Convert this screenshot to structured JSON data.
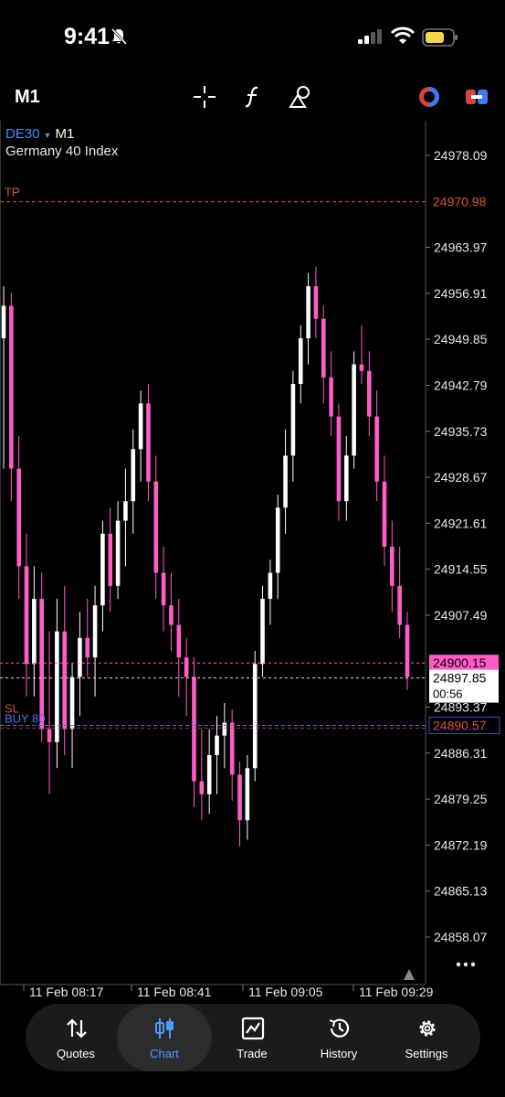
{
  "status": {
    "time": "9:41"
  },
  "toolbar": {
    "timeframe": "M1"
  },
  "chart_info": {
    "symbol": "DE30",
    "timeframe": "M1",
    "description": "Germany 40 Index"
  },
  "price_axis": [
    "24978.09",
    "24963.97",
    "24956.91",
    "24949.85",
    "24942.79",
    "24935.73",
    "24928.67",
    "24921.61",
    "24914.55",
    "24907.49",
    "24893.37",
    "24886.31",
    "24879.25",
    "24872.19",
    "24865.13",
    "24858.07"
  ],
  "lines": {
    "tp_label": "TP",
    "tp_price": "24970.98",
    "sl_label": "SL",
    "buy_label": "BUY 80",
    "entry_price": "24890.57",
    "ask_price": "24900.15",
    "bid_price": "24897.85",
    "countdown": "00:56"
  },
  "time_axis": [
    "11 Feb 08:17",
    "11 Feb 08:41",
    "11 Feb 09:05",
    "11 Feb 09:29"
  ],
  "tabs": [
    {
      "label": "Quotes",
      "icon": "quotes-arrows-icon"
    },
    {
      "label": "Chart",
      "icon": "candlestick-icon"
    },
    {
      "label": "Trade",
      "icon": "trade-chart-icon"
    },
    {
      "label": "History",
      "icon": "history-clock-icon"
    },
    {
      "label": "Settings",
      "icon": "gear-icon"
    }
  ],
  "colors": {
    "bull": "#ffffff",
    "bear": "#ff5cc8",
    "tp": "#d9533c",
    "sl": "#d9533c",
    "entry": "#5b6ee0",
    "ask": "#ff5cc8",
    "accent": "#4d9bff"
  },
  "chart_data": {
    "type": "candlestick",
    "x_labels": [
      "11 Feb 08:17",
      "11 Feb 08:41",
      "11 Feb 09:05",
      "11 Feb 09:29"
    ],
    "ylim": [
      24853,
      24985
    ],
    "ohlc": [
      [
        24950,
        24958,
        24930,
        24955
      ],
      [
        24955,
        24957,
        24925,
        24930
      ],
      [
        24930,
        24935,
        24910,
        24915
      ],
      [
        24915,
        24920,
        24895,
        24900
      ],
      [
        24900,
        24915,
        24895,
        24910
      ],
      [
        24910,
        24914,
        24888,
        24890
      ],
      [
        24890,
        24905,
        24880,
        24888
      ],
      [
        24888,
        24910,
        24884,
        24905
      ],
      [
        24905,
        24912,
        24886,
        24890
      ],
      [
        24890,
        24900,
        24884,
        24898
      ],
      [
        24898,
        24908,
        24892,
        24904
      ],
      [
        24904,
        24910,
        24898,
        24901
      ],
      [
        24901,
        24912,
        24895,
        24909
      ],
      [
        24909,
        24922,
        24905,
        24920
      ],
      [
        24920,
        24924,
        24908,
        24912
      ],
      [
        24912,
        24925,
        24910,
        24922
      ],
      [
        24922,
        24930,
        24915,
        24925
      ],
      [
        24925,
        24936,
        24920,
        24933
      ],
      [
        24933,
        24942,
        24928,
        24940
      ],
      [
        24940,
        24943,
        24925,
        24928
      ],
      [
        24928,
        24932,
        24910,
        24914
      ],
      [
        24914,
        24918,
        24905,
        24909
      ],
      [
        24909,
        24914,
        24902,
        24906
      ],
      [
        24906,
        24910,
        24895,
        24901
      ],
      [
        24901,
        24904,
        24892,
        24898
      ],
      [
        24898,
        24901,
        24878,
        24882
      ],
      [
        24882,
        24890,
        24876,
        24880
      ],
      [
        24880,
        24890,
        24877,
        24886
      ],
      [
        24886,
        24892,
        24880,
        24889
      ],
      [
        24889,
        24894,
        24884,
        24891
      ],
      [
        24891,
        24893,
        24879,
        24883
      ],
      [
        24883,
        24885,
        24872,
        24876
      ],
      [
        24876,
        24886,
        24873,
        24884
      ],
      [
        24884,
        24902,
        24882,
        24900
      ],
      [
        24900,
        24912,
        24898,
        24910
      ],
      [
        24910,
        24916,
        24906,
        24914
      ],
      [
        24914,
        24926,
        24910,
        24924
      ],
      [
        24924,
        24936,
        24920,
        24932
      ],
      [
        24932,
        24945,
        24928,
        24943
      ],
      [
        24943,
        24952,
        24940,
        24950
      ],
      [
        24950,
        24960,
        24946,
        24958
      ],
      [
        24958,
        24961,
        24950,
        24953
      ],
      [
        24953,
        24955,
        24940,
        24944
      ],
      [
        24944,
        24948,
        24935,
        24938
      ],
      [
        24938,
        24940,
        24922,
        24925
      ],
      [
        24925,
        24935,
        24922,
        24932
      ],
      [
        24932,
        24948,
        24930,
        24946
      ],
      [
        24946,
        24952,
        24943,
        24945
      ],
      [
        24945,
        24948,
        24935,
        24938
      ],
      [
        24938,
        24942,
        24925,
        24928
      ],
      [
        24928,
        24932,
        24915,
        24918
      ],
      [
        24918,
        24922,
        24908,
        24912
      ],
      [
        24912,
        24918,
        24904,
        24906
      ],
      [
        24906,
        24908,
        24896,
        24898
      ]
    ]
  }
}
